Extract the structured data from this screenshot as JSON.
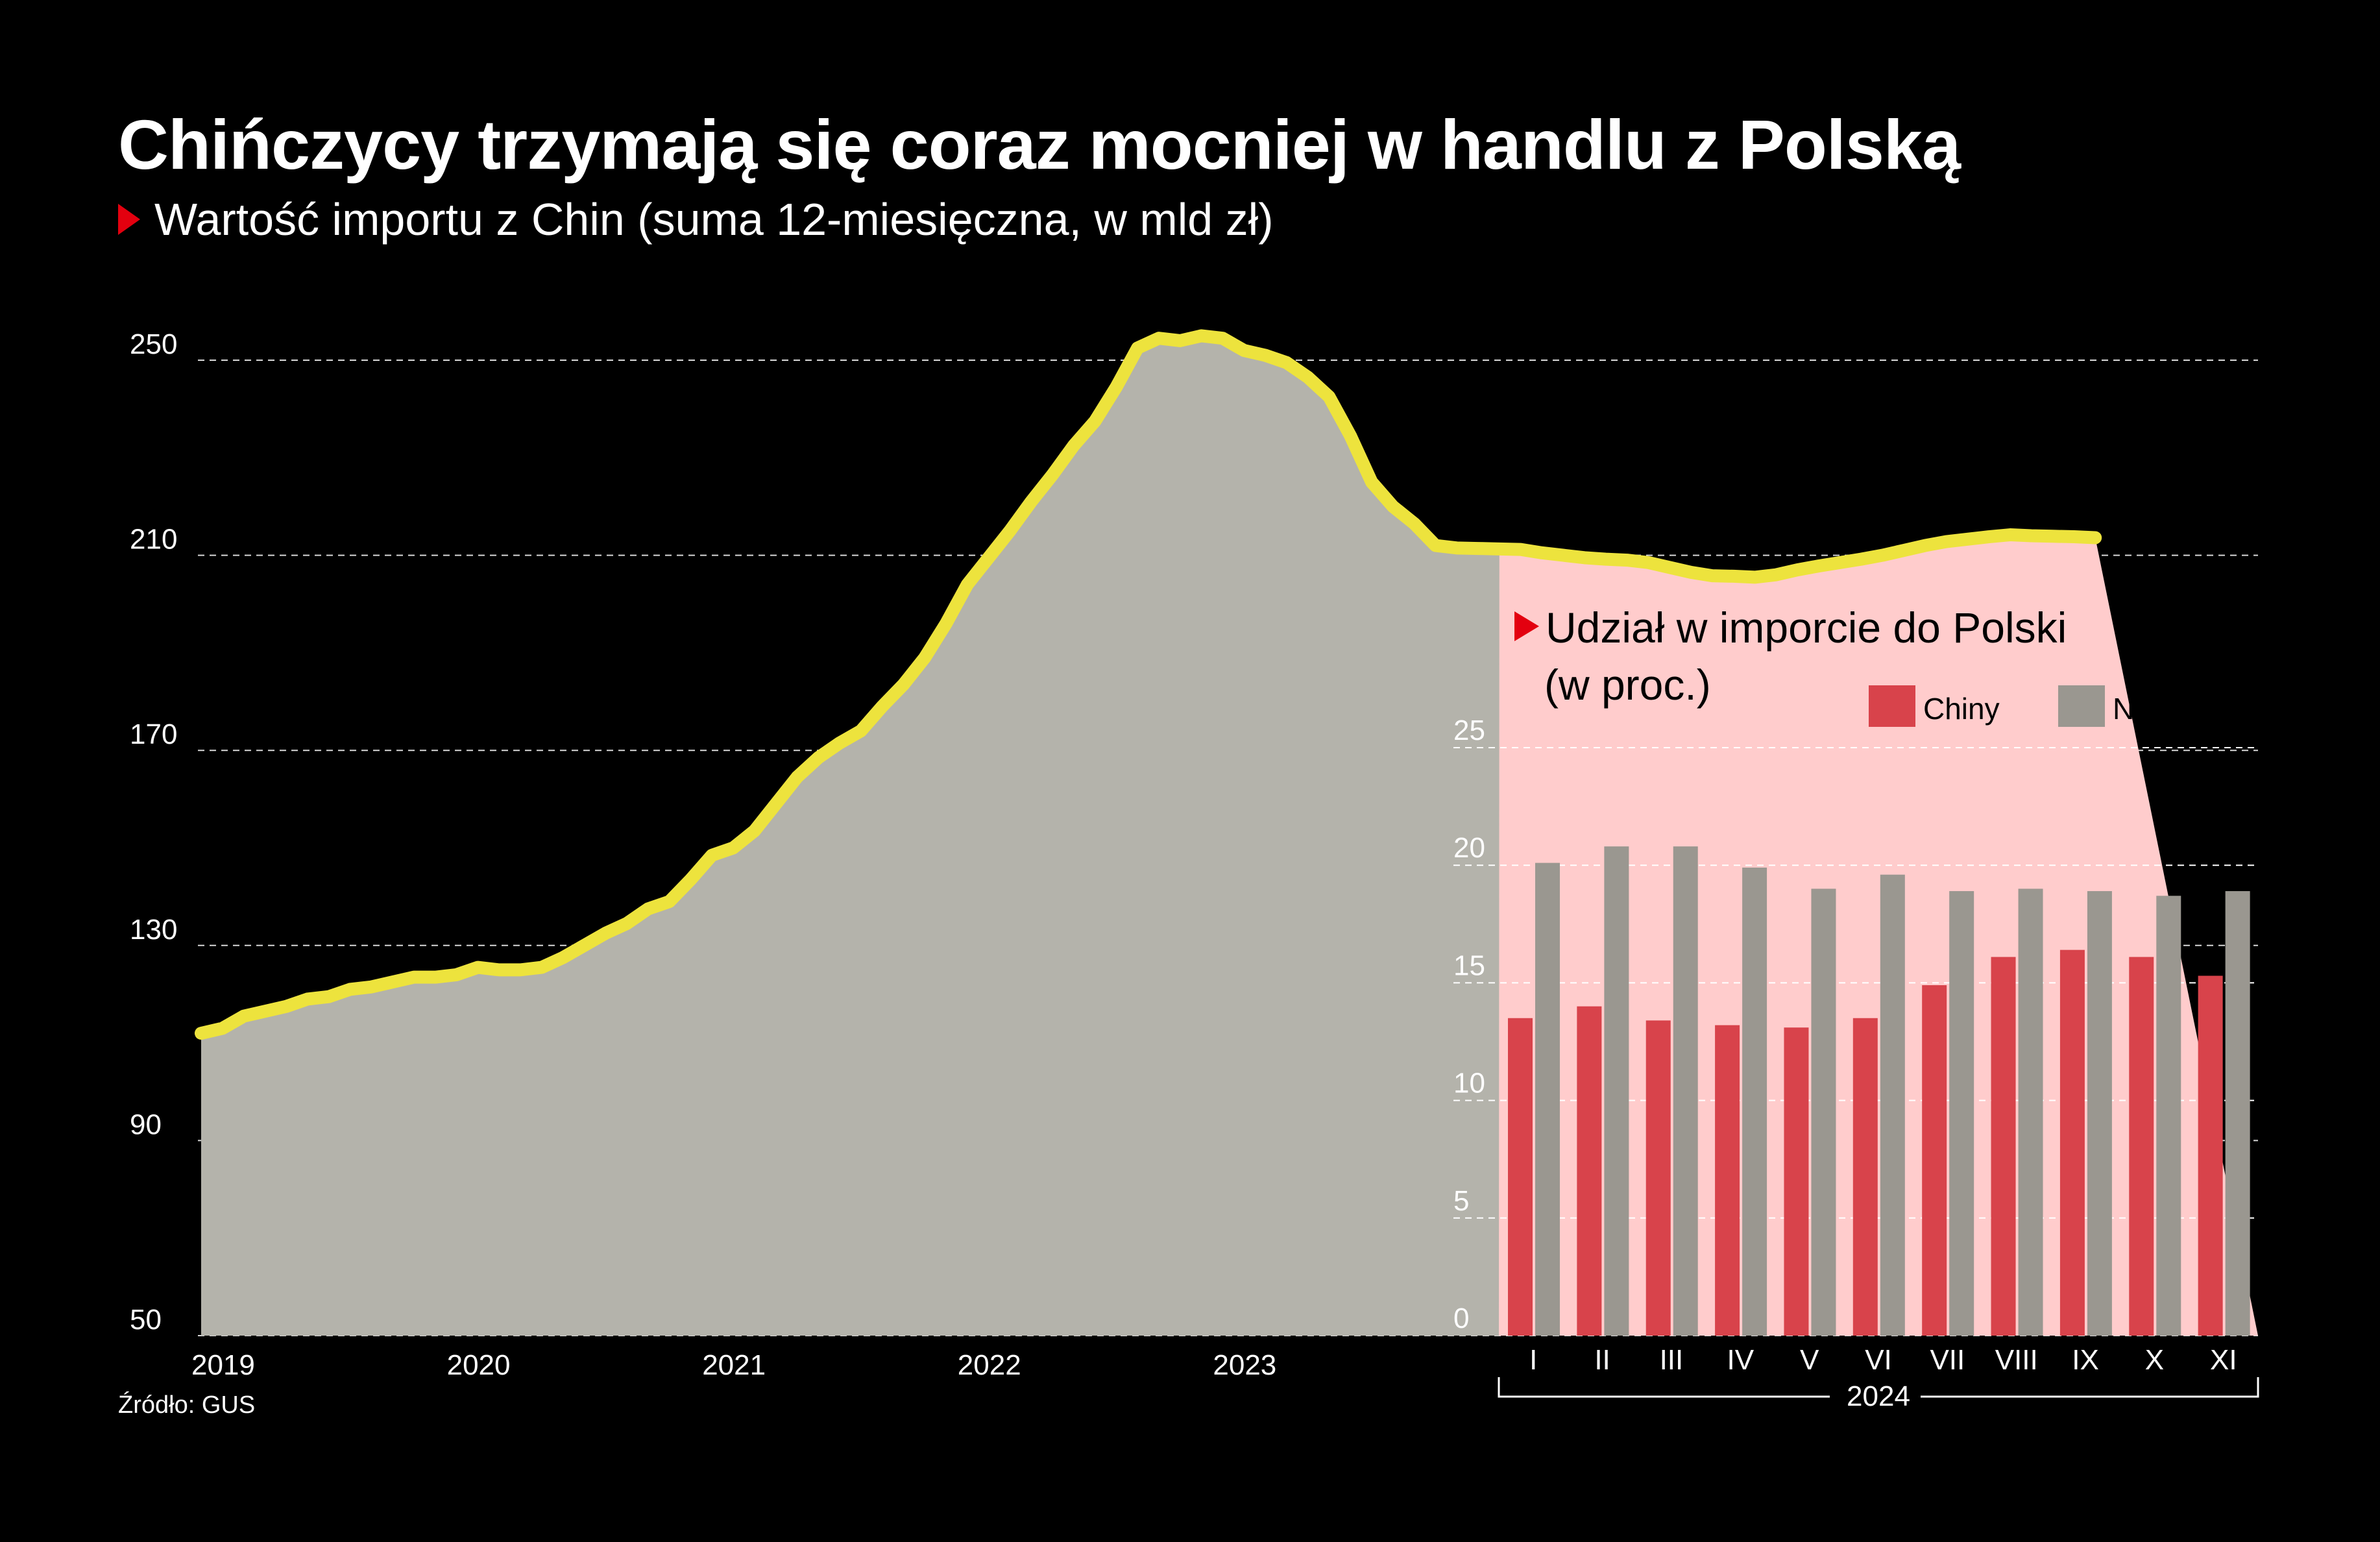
{
  "title": "Chińczycy trzymają się coraz mocniej w handlu z Polską",
  "subtitle": "Wartość importu z Chin (suma 12-miesięczna, w mld zł)",
  "source": "Źródło: GUS",
  "colors": {
    "background": "#000000",
    "area_fill": "#b4b3ab",
    "line": "#ede33d",
    "inset_bg": "#ffcccc",
    "chiny": "#d8434b",
    "niemcy": "#9a9790",
    "accent": "#e3000f"
  },
  "chart_data": [
    {
      "type": "area",
      "title": "Wartość importu z Chin (suma 12-miesięczna, w mld zł)",
      "x_tick_labels": [
        "2019",
        "2020",
        "2021",
        "2022",
        "2023"
      ],
      "ylim": [
        50,
        250
      ],
      "y_ticks": [
        50,
        90,
        130,
        170,
        210,
        250
      ],
      "grid": true,
      "series": [
        {
          "start": "2019-01",
          "interval": "month",
          "values": [
            112,
            113,
            115.5,
            116.5,
            117.5,
            119,
            119.5,
            121,
            121.5,
            122.5,
            123.5,
            123.5,
            124,
            125.5,
            125,
            125,
            125.5,
            127.5,
            130,
            132.5,
            134.5,
            137.5,
            139,
            143.5,
            148.5,
            150,
            153.5,
            159,
            164.5,
            168.5,
            171.5,
            174,
            179,
            183.5,
            189,
            196,
            204,
            209.5,
            215,
            221,
            226.5,
            232.5,
            237.5,
            244.5,
            252.5,
            254.5,
            254,
            255,
            254.5,
            252,
            251,
            249.5,
            246.5,
            242.5,
            234.5,
            225,
            220,
            216.5,
            212,
            211.5,
            211.4,
            211.3,
            211.2,
            210.5,
            210,
            209.5,
            209.2,
            209,
            208.5,
            207.5,
            206.5,
            205.8,
            205.7,
            205.5,
            206,
            207,
            207.8,
            208.5,
            209.2,
            210,
            211,
            212,
            212.8,
            213.3,
            213.8,
            214.2,
            214,
            213.9,
            213.8,
            213.6
          ]
        }
      ]
    },
    {
      "type": "bar",
      "title": "Udział w imporcie do Polski",
      "subtitle": "(w proc.)",
      "categories": [
        "I",
        "II",
        "III",
        "IV",
        "V",
        "VI",
        "VII",
        "VIII",
        "IX",
        "X",
        "XI"
      ],
      "group_label": "2024",
      "ylim": [
        0,
        25
      ],
      "y_ticks": [
        0,
        5,
        10,
        15,
        20,
        25
      ],
      "legend_position": "top-right",
      "series": [
        {
          "name": "Chiny",
          "values": [
            13.5,
            14,
            13.4,
            13.2,
            13.1,
            13.5,
            14.9,
            16.1,
            16.4,
            16.1,
            15.3
          ]
        },
        {
          "name": "Niemcy",
          "values": [
            20.1,
            20.8,
            20.8,
            19.9,
            19,
            19.6,
            18.9,
            19,
            18.9,
            18.7,
            18.9
          ]
        }
      ]
    }
  ]
}
